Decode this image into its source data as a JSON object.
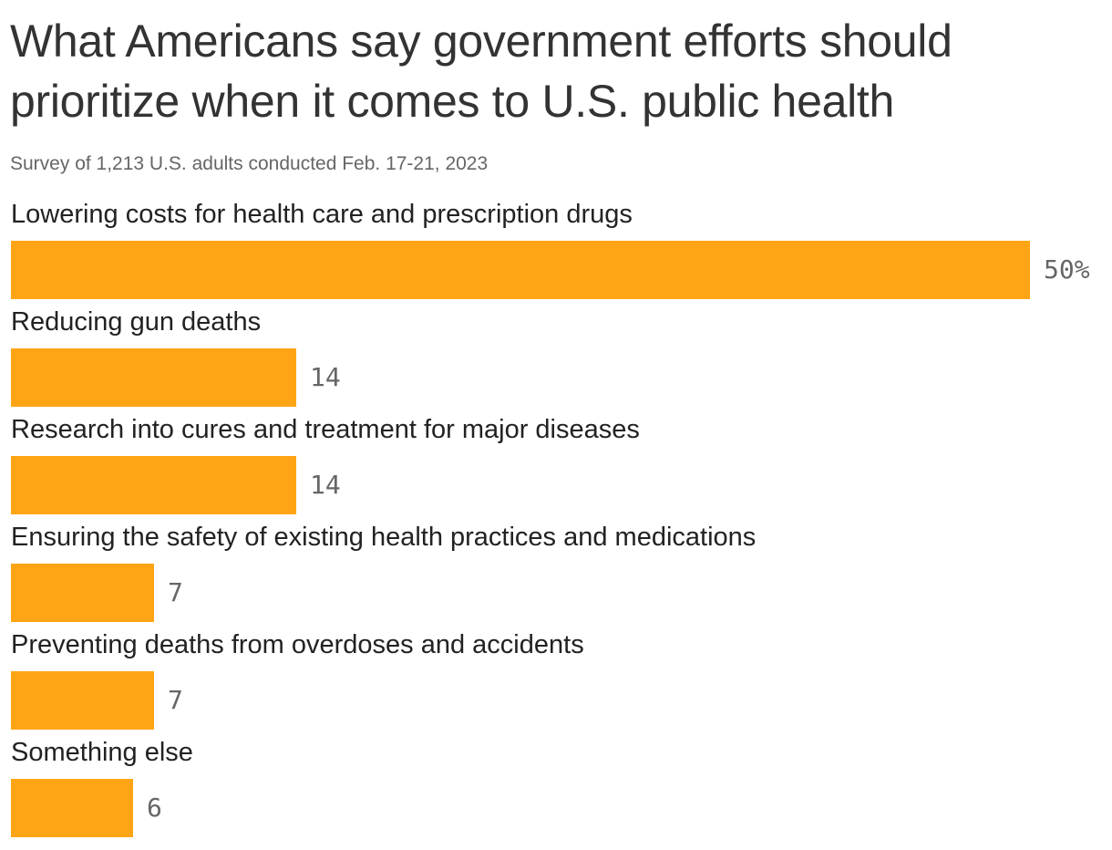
{
  "chart_data": {
    "type": "bar",
    "orientation": "horizontal",
    "title": "What Americans say government efforts should prioritize when it comes to U.S. public health",
    "subtitle": "Survey of 1,213 U.S. adults conducted Feb. 17-21, 2023",
    "categories": [
      "Lowering costs for health care and prescription drugs",
      "Reducing gun deaths",
      "Research into cures and treatment for major diseases",
      "Ensuring the safety of existing health practices and medications",
      "Preventing deaths from overdoses and accidents",
      "Something else"
    ],
    "values": [
      50,
      14,
      14,
      7,
      7,
      6
    ],
    "value_labels": [
      "50%",
      "14",
      "14",
      "7",
      "7",
      "6"
    ],
    "xlim": [
      0,
      50
    ],
    "grid": false,
    "legend": "none",
    "bar_color": "#FFA515"
  }
}
